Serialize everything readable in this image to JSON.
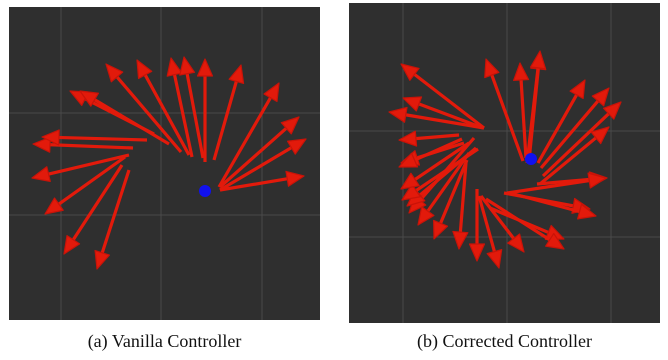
{
  "colors": {
    "background": "#2f2f2f",
    "grid": "#4a4a4a",
    "arrow": "#e21a0b",
    "arrow_head": "#c81308",
    "dot": "#1111ee"
  },
  "panels": [
    {
      "caption": "(a) Vanilla Controller",
      "icon": "arrow-field-spiral-icon",
      "marker": "blue-dot"
    },
    {
      "caption": "(b) Corrected Controller",
      "icon": "arrow-field-vortex-icon",
      "marker": "blue-dot"
    }
  ]
}
